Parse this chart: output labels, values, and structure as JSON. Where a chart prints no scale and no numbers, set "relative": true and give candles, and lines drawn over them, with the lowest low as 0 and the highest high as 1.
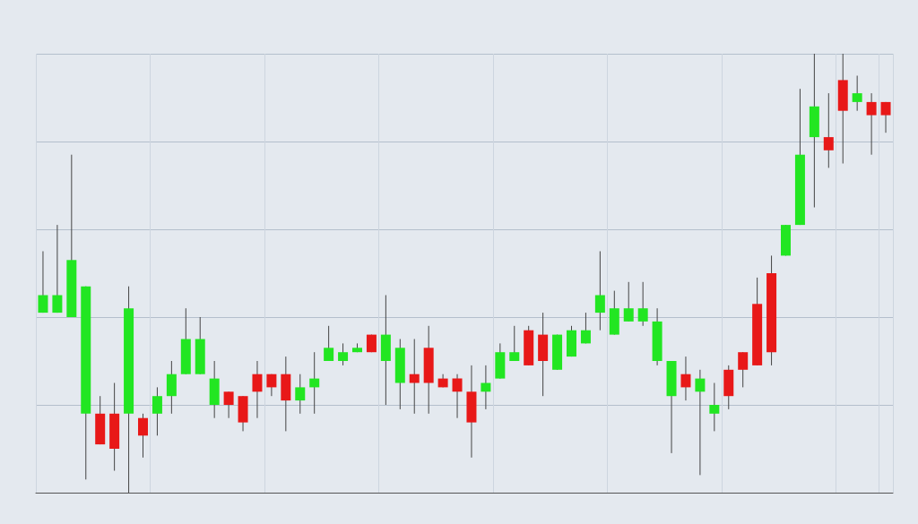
{
  "chart_data": {
    "type": "candlestick",
    "relative": true,
    "grid": true,
    "categories": [
      null,
      null,
      null,
      null,
      null,
      null,
      null,
      null,
      null,
      null,
      null,
      null,
      null,
      null,
      null,
      null,
      null,
      null,
      null,
      null,
      null,
      null,
      null,
      null,
      null,
      null,
      null,
      null,
      null,
      null,
      null,
      null,
      null,
      null,
      null,
      null,
      null,
      null,
      null,
      null,
      null,
      null,
      null,
      null,
      null,
      null,
      null,
      null,
      null,
      null,
      null,
      null,
      null,
      null,
      null,
      null,
      null,
      null,
      null,
      null
    ],
    "ohlc": [
      [
        0.41,
        0.55,
        0.41,
        0.45
      ],
      [
        0.41,
        0.61,
        0.41,
        0.45
      ],
      [
        0.4,
        0.77,
        0.4,
        0.53
      ],
      [
        0.18,
        0.47,
        0.03,
        0.47
      ],
      [
        0.18,
        0.22,
        0.11,
        0.11
      ],
      [
        0.18,
        0.25,
        0.05,
        0.1
      ],
      [
        0.18,
        0.47,
        0,
        0.42
      ],
      [
        0.17,
        0.18,
        0.08,
        0.13
      ],
      [
        0.18,
        0.24,
        0.13,
        0.22
      ],
      [
        0.22,
        0.3,
        0.18,
        0.27
      ],
      [
        0.27,
        0.42,
        0.27,
        0.35
      ],
      [
        0.27,
        0.4,
        0.27,
        0.35
      ],
      [
        0.2,
        0.3,
        0.17,
        0.26
      ],
      [
        0.23,
        0.23,
        0.17,
        0.2
      ],
      [
        0.22,
        0.22,
        0.14,
        0.16
      ],
      [
        0.27,
        0.3,
        0.17,
        0.23
      ],
      [
        0.27,
        0.27,
        0.22,
        0.24
      ],
      [
        0.27,
        0.31,
        0.14,
        0.21
      ],
      [
        0.21,
        0.27,
        0.18,
        0.24
      ],
      [
        0.24,
        0.32,
        0.18,
        0.26
      ],
      [
        0.3,
        0.38,
        0.3,
        0.33
      ],
      [
        0.3,
        0.34,
        0.29,
        0.32
      ],
      [
        0.32,
        0.34,
        0.32,
        0.33
      ],
      [
        0.36,
        0.36,
        0.32,
        0.32
      ],
      [
        0.3,
        0.45,
        0.2,
        0.36
      ],
      [
        0.25,
        0.35,
        0.19,
        0.33
      ],
      [
        0.27,
        0.35,
        0.18,
        0.25
      ],
      [
        0.33,
        0.38,
        0.18,
        0.25
      ],
      [
        0.26,
        0.27,
        0.24,
        0.24
      ],
      [
        0.26,
        0.27,
        0.17,
        0.23
      ],
      [
        0.23,
        0.29,
        0.08,
        0.16
      ],
      [
        0.23,
        0.29,
        0.19,
        0.25
      ],
      [
        0.26,
        0.34,
        0.26,
        0.32
      ],
      [
        0.3,
        0.38,
        0.3,
        0.32
      ],
      [
        0.37,
        0.38,
        0.29,
        0.29
      ],
      [
        0.36,
        0.41,
        0.22,
        0.3
      ],
      [
        0.28,
        0.36,
        0.28,
        0.36
      ],
      [
        0.31,
        0.38,
        0.31,
        0.37
      ],
      [
        0.34,
        0.41,
        0.34,
        0.37
      ],
      [
        0.41,
        0.55,
        0.37,
        0.45
      ],
      [
        0.36,
        0.46,
        0.36,
        0.42
      ],
      [
        0.39,
        0.48,
        0.39,
        0.42
      ],
      [
        0.39,
        0.48,
        0.38,
        0.42
      ],
      [
        0.3,
        0.42,
        0.29,
        0.39
      ],
      [
        0.22,
        0.3,
        0.09,
        0.3
      ],
      [
        0.27,
        0.31,
        0.21,
        0.24
      ],
      [
        0.23,
        0.28,
        0.04,
        0.26
      ],
      [
        0.18,
        0.25,
        0.14,
        0.2
      ],
      [
        0.28,
        0.29,
        0.19,
        0.22
      ],
      [
        0.32,
        0.32,
        0.24,
        0.28
      ],
      [
        0.43,
        0.49,
        0.29,
        0.29
      ],
      [
        0.5,
        0.54,
        0.29,
        0.32
      ],
      [
        0.54,
        0.61,
        0.54,
        0.61
      ],
      [
        0.61,
        0.92,
        0.61,
        0.77
      ],
      [
        0.81,
        1.0,
        0.65,
        0.88
      ],
      [
        0.81,
        0.91,
        0.74,
        0.78
      ],
      [
        0.94,
        1.0,
        0.75,
        0.87
      ],
      [
        0.89,
        0.95,
        0.87,
        0.91
      ],
      [
        0.89,
        0.91,
        0.77,
        0.86
      ],
      [
        0.89,
        0.89,
        0.82,
        0.86
      ]
    ],
    "colors": [
      "#22e622",
      "#22e622",
      "#22e622",
      "#22e622",
      "#e81818",
      "#e81818",
      "#22e622",
      "#e81818",
      "#22e622",
      "#22e622",
      "#22e622",
      "#22e622",
      "#22e622",
      "#e81818",
      "#e81818",
      "#e81818",
      "#e81818",
      "#e81818",
      "#22e622",
      "#22e622",
      "#22e622",
      "#22e622",
      "#22e622",
      "#e81818",
      "#22e622",
      "#22e622",
      "#e81818",
      "#e81818",
      "#e81818",
      "#e81818",
      "#e81818",
      "#22e622",
      "#22e622",
      "#22e622",
      "#e81818",
      "#e81818",
      "#22e622",
      "#22e622",
      "#22e622",
      "#22e622",
      "#22e622",
      "#22e622",
      "#22e622",
      "#22e622",
      "#22e622",
      "#e81818",
      "#22e622",
      "#22e622",
      "#e81818",
      "#e81818",
      "#e81818",
      "#e81818",
      "#22e622",
      "#22e622",
      "#22e622",
      "#e81818",
      "#e81818",
      "#22e622",
      "#e81818",
      "#e81818"
    ]
  }
}
